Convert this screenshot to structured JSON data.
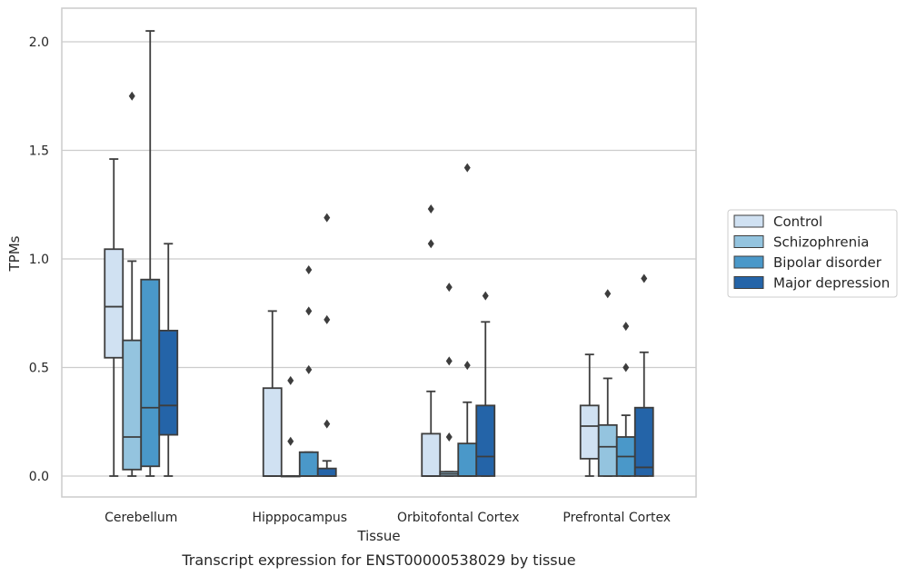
{
  "chart_data": {
    "type": "box",
    "xlabel": "Tissue",
    "ylabel": "TPMs",
    "caption": "Transcript expression for ENST00000538029 by tissue",
    "ylim": [
      -0.1,
      2.15
    ],
    "yticks": [
      0.0,
      0.5,
      1.0,
      1.5,
      2.0
    ],
    "ytick_labels": [
      "0.0",
      "0.5",
      "1.0",
      "1.5",
      "2.0"
    ],
    "grid": "horizontal",
    "legend_position": "right",
    "categories": [
      "Cerebellum",
      "Hipppocampus",
      "Orbitofontal Cortex",
      "Prefrontal Cortex"
    ],
    "series": [
      {
        "name": "Control",
        "color": "#d0e1f2",
        "boxes": [
          {
            "whislo": 0.0,
            "q1": 0.545,
            "med": 0.78,
            "q3": 1.045,
            "whishi": 1.46,
            "fliers": []
          },
          {
            "whislo": 0.0,
            "q1": 0.0,
            "med": 0.0,
            "q3": 0.405,
            "whishi": 0.76,
            "fliers": []
          },
          {
            "whislo": 0.0,
            "q1": 0.0,
            "med": 0.0,
            "q3": 0.195,
            "whishi": 0.39,
            "fliers": [
              1.07,
              1.23
            ]
          },
          {
            "whislo": 0.0,
            "q1": 0.08,
            "med": 0.23,
            "q3": 0.325,
            "whishi": 0.56,
            "fliers": []
          }
        ]
      },
      {
        "name": "Schizophrenia",
        "color": "#94c4df",
        "boxes": [
          {
            "whislo": 0.0,
            "q1": 0.03,
            "med": 0.18,
            "q3": 0.625,
            "whishi": 0.99,
            "fliers": [
              1.75
            ]
          },
          {
            "whislo": 0.0,
            "q1": 0.0,
            "med": 0.0,
            "q3": 0.0,
            "whishi": 0.0,
            "fliers": [
              0.16,
              0.44
            ]
          },
          {
            "whislo": 0.0,
            "q1": 0.0,
            "med": 0.01,
            "q3": 0.02,
            "whishi": 0.02,
            "fliers": [
              0.18,
              0.53,
              0.87
            ]
          },
          {
            "whislo": 0.0,
            "q1": 0.0,
            "med": 0.135,
            "q3": 0.235,
            "whishi": 0.45,
            "fliers": [
              0.84
            ]
          }
        ]
      },
      {
        "name": "Bipolar disorder",
        "color": "#4a98c9",
        "boxes": [
          {
            "whislo": 0.0,
            "q1": 0.045,
            "med": 0.315,
            "q3": 0.905,
            "whishi": 2.05,
            "fliers": []
          },
          {
            "whislo": 0.0,
            "q1": 0.0,
            "med": 0.0,
            "q3": 0.11,
            "whishi": 0.11,
            "fliers": [
              0.49,
              0.76,
              0.95
            ]
          },
          {
            "whislo": 0.0,
            "q1": 0.0,
            "med": 0.0,
            "q3": 0.15,
            "whishi": 0.34,
            "fliers": [
              0.51,
              1.42
            ]
          },
          {
            "whislo": 0.0,
            "q1": 0.0,
            "med": 0.09,
            "q3": 0.18,
            "whishi": 0.28,
            "fliers": [
              0.5,
              0.69
            ]
          }
        ]
      },
      {
        "name": "Major depression",
        "color": "#2464a8",
        "boxes": [
          {
            "whislo": 0.0,
            "q1": 0.19,
            "med": 0.325,
            "q3": 0.67,
            "whishi": 1.07,
            "fliers": []
          },
          {
            "whislo": 0.0,
            "q1": 0.0,
            "med": 0.0,
            "q3": 0.035,
            "whishi": 0.07,
            "fliers": [
              0.24,
              0.72,
              1.19
            ]
          },
          {
            "whislo": 0.0,
            "q1": 0.0,
            "med": 0.09,
            "q3": 0.325,
            "whishi": 0.71,
            "fliers": [
              0.83
            ]
          },
          {
            "whislo": 0.0,
            "q1": 0.0,
            "med": 0.04,
            "q3": 0.315,
            "whishi": 0.57,
            "fliers": [
              0.91
            ]
          }
        ]
      }
    ]
  }
}
